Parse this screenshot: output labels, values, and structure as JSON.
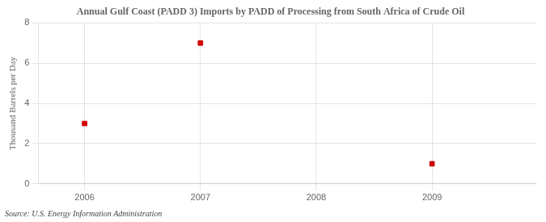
{
  "chart_data": {
    "type": "scatter",
    "title": "Annual Gulf Coast (PADD 3) Imports by PADD of Processing from South Africa of Crude Oil",
    "ylabel": "Thousand Barrels per Day",
    "annotations": [
      "Source: U.S. Energy Information Administration"
    ],
    "x": [
      2006,
      2007,
      2009
    ],
    "values": [
      3,
      7,
      1
    ],
    "color": "#cc0000",
    "marker": "square",
    "xlim": [
      2005.6,
      2009.9
    ],
    "xticks": [
      2006,
      2007,
      2008,
      2009
    ],
    "ylim": [
      0,
      8
    ],
    "yticks": [
      0,
      2,
      4,
      6,
      8
    ],
    "grid": true
  }
}
